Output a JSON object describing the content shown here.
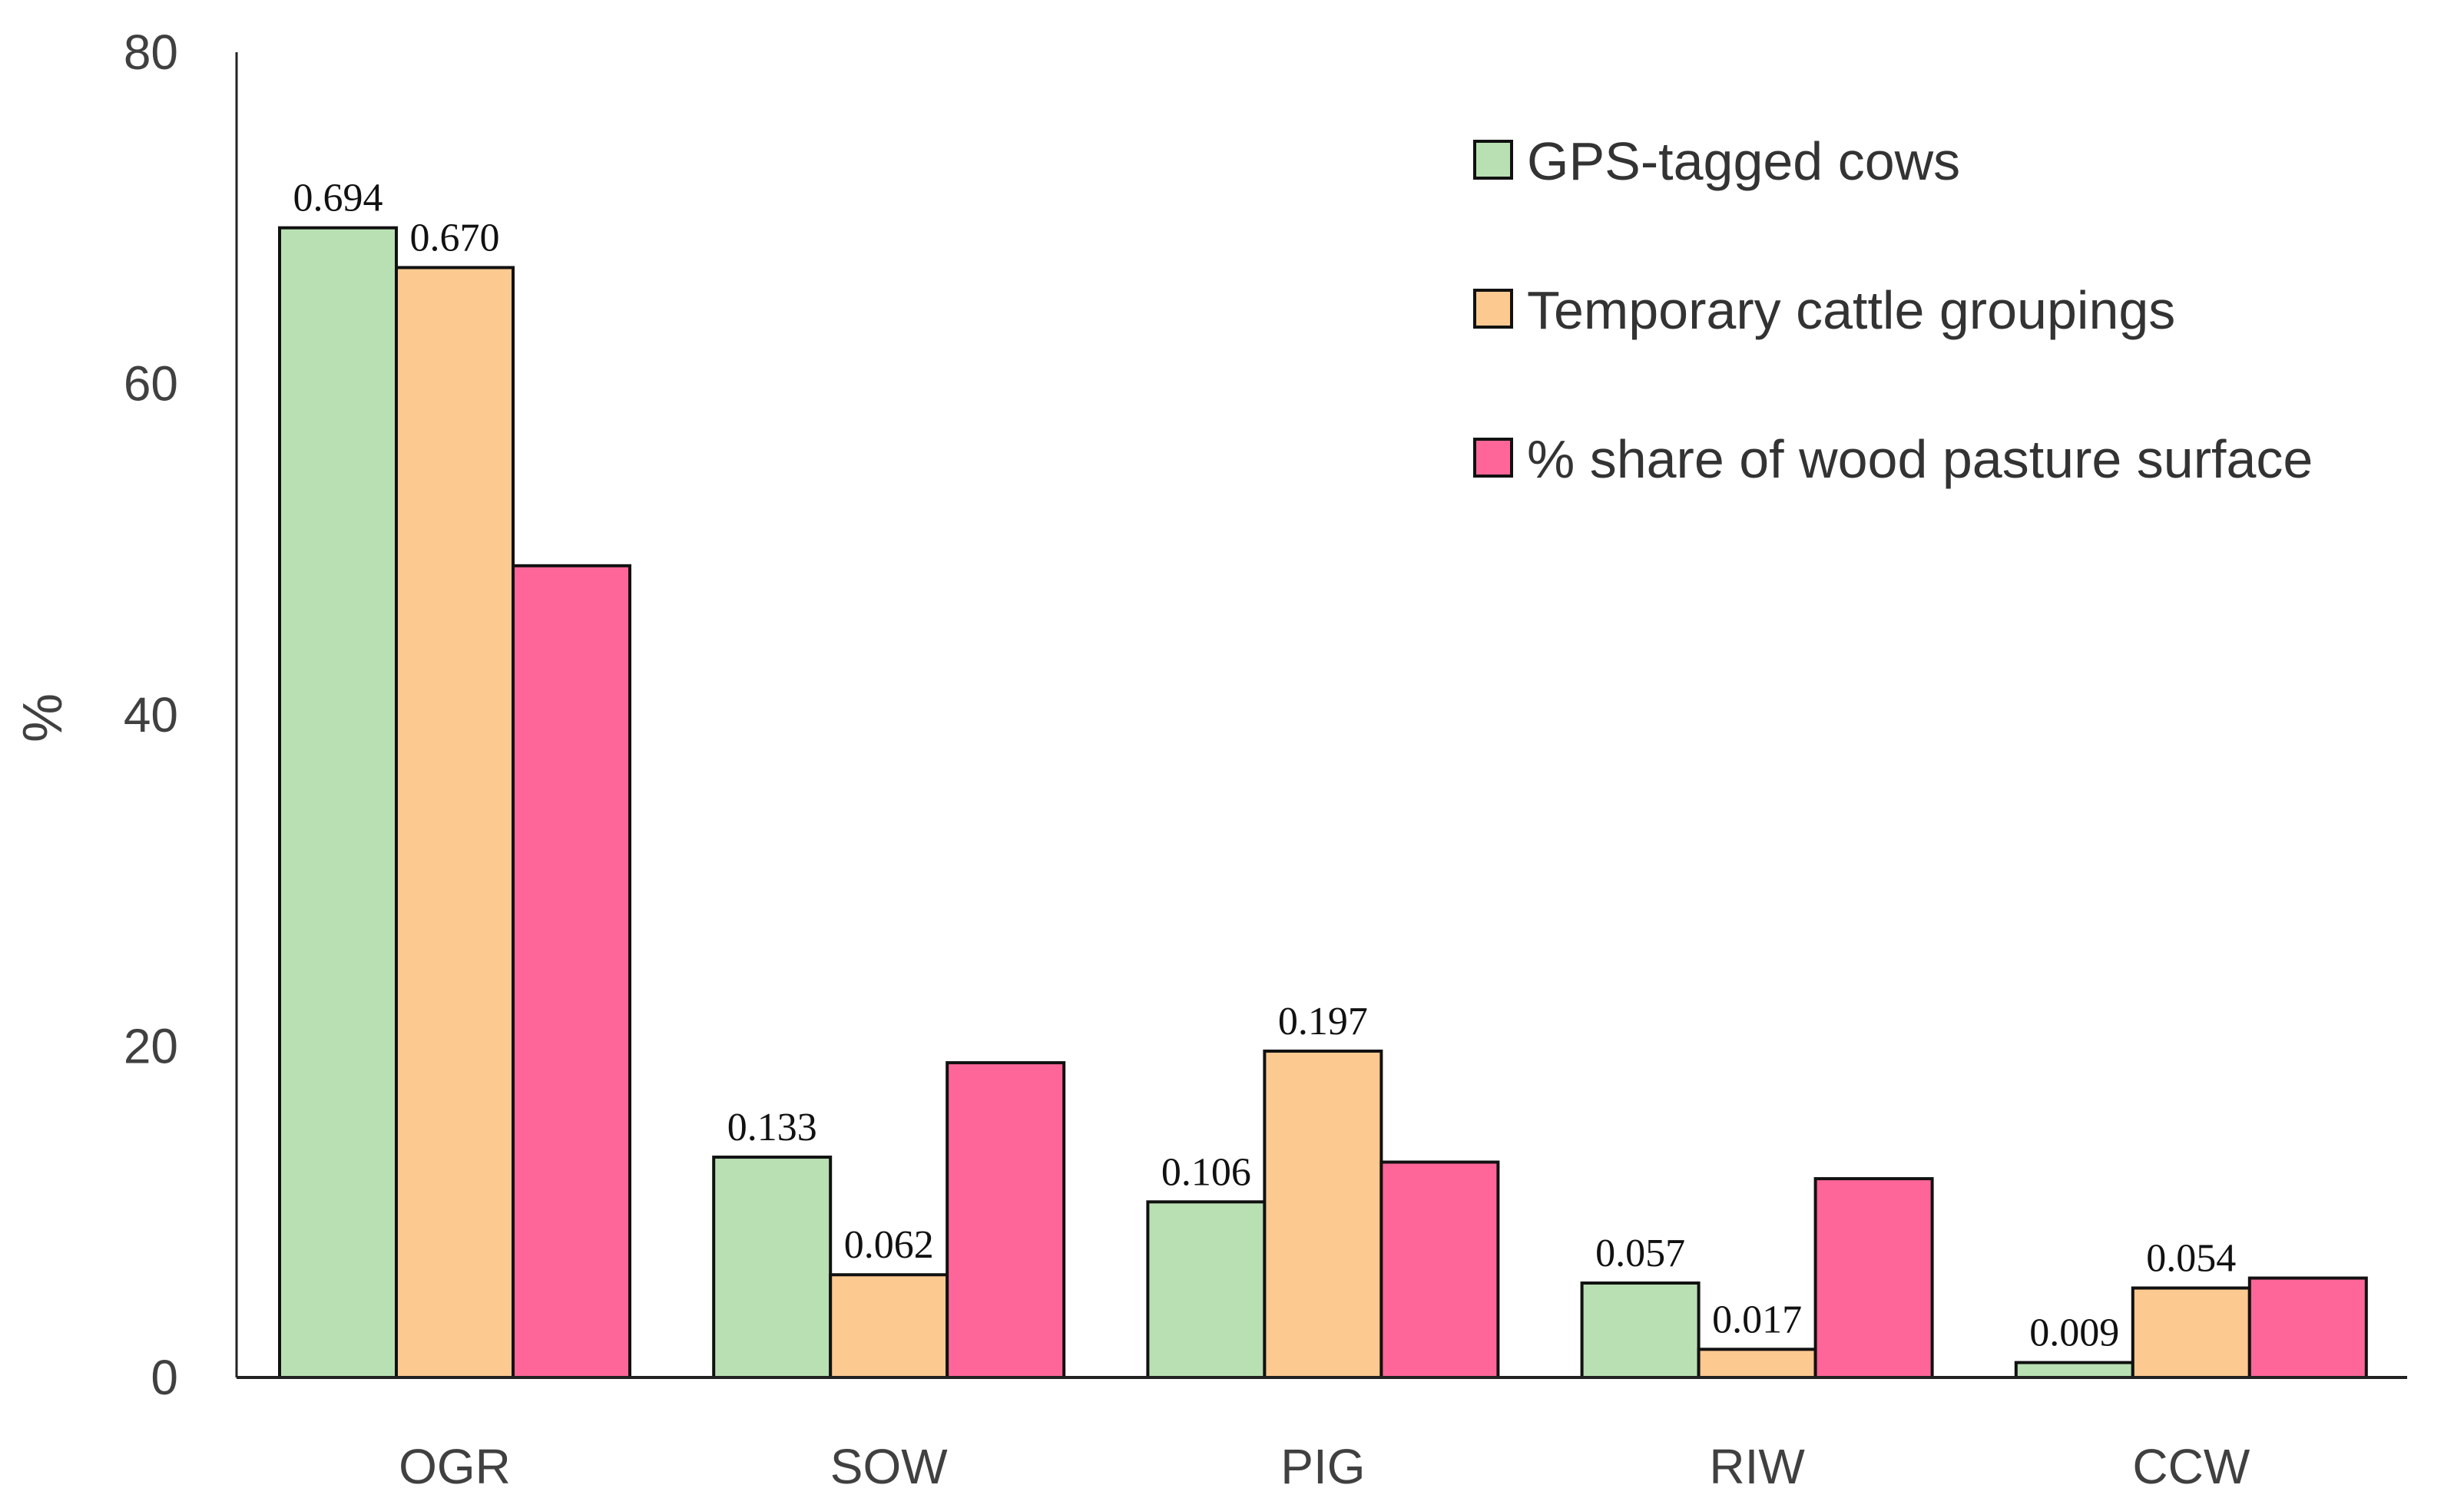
{
  "chart_data": {
    "type": "bar",
    "title": "",
    "xlabel": "",
    "ylabel": "%",
    "ylim": [
      0,
      80
    ],
    "yticks": [
      "0",
      "20",
      "40",
      "60",
      "80"
    ],
    "grid": false,
    "legend_position": "top-right",
    "categories": [
      "OGR",
      "SOW",
      "PIG",
      "RIW",
      "CCW"
    ],
    "series": [
      {
        "name": "GPS-tagged cows",
        "color": "#b9e0b3",
        "values": [
          69.4,
          13.3,
          10.6,
          5.7,
          0.9
        ],
        "labels": [
          "0.694",
          "0.133",
          "0.106",
          "0.057",
          "0.009"
        ]
      },
      {
        "name": "Temporary cattle groupings",
        "color": "#fcc990",
        "values": [
          67.0,
          6.2,
          19.7,
          1.7,
          5.4
        ],
        "labels": [
          "0.670",
          "0.062",
          "0.197",
          "0.017",
          "0.054"
        ]
      },
      {
        "name": "% share of wood pasture surface",
        "color": "#fe6699",
        "values": [
          49.0,
          19.0,
          13.0,
          12.0,
          6.0
        ],
        "labels": [
          "",
          "",
          "",
          "",
          ""
        ]
      }
    ]
  }
}
